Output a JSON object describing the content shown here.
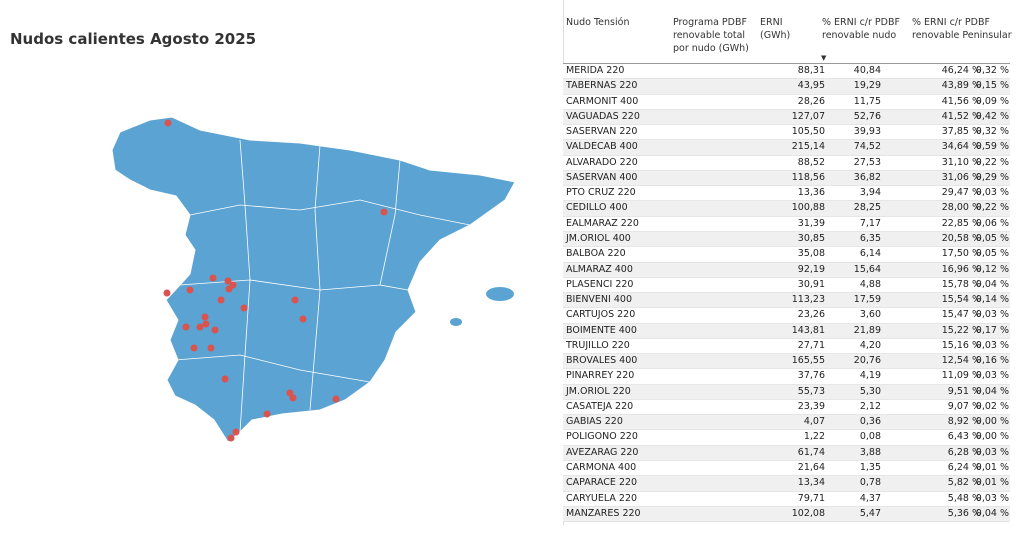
{
  "title": "Nudos calientes Agosto 2025",
  "table": {
    "headers": [
      "Nudo Tensión",
      "Programa PDBF renovable total por nudo (GWh)",
      "ERNI (GWh)",
      "% ERNI c/r PDBF renovable nudo",
      "% ERNI c/r PDBF renovable Peninsular"
    ],
    "rows": [
      [
        "MERIDA 220",
        "88,31",
        "40,84",
        "46,24 %",
        "0,32 %"
      ],
      [
        "TABERNAS 220",
        "43,95",
        "19,29",
        "43,89 %",
        "0,15 %"
      ],
      [
        "CARMONIT 400",
        "28,26",
        "11,75",
        "41,56 %",
        "0,09 %"
      ],
      [
        "VAGUADAS 220",
        "127,07",
        "52,76",
        "41,52 %",
        "0,42 %"
      ],
      [
        "SASERVAN 220",
        "105,50",
        "39,93",
        "37,85 %",
        "0,32 %"
      ],
      [
        "VALDECAB 400",
        "215,14",
        "74,52",
        "34,64 %",
        "0,59 %"
      ],
      [
        "ALVARADO 220",
        "88,52",
        "27,53",
        "31,10 %",
        "0,22 %"
      ],
      [
        "SASERVAN 400",
        "118,56",
        "36,82",
        "31,06 %",
        "0,29 %"
      ],
      [
        "PTO CRUZ 220",
        "13,36",
        "3,94",
        "29,47 %",
        "0,03 %"
      ],
      [
        "CEDILLO 400",
        "100,88",
        "28,25",
        "28,00 %",
        "0,22 %"
      ],
      [
        "EALMARAZ 220",
        "31,39",
        "7,17",
        "22,85 %",
        "0,06 %"
      ],
      [
        "JM.ORIOL 400",
        "30,85",
        "6,35",
        "20,58 %",
        "0,05 %"
      ],
      [
        "BALBOA 220",
        "35,08",
        "6,14",
        "17,50 %",
        "0,05 %"
      ],
      [
        "ALMARAZ 400",
        "92,19",
        "15,64",
        "16,96 %",
        "0,12 %"
      ],
      [
        "PLASENCI 220",
        "30,91",
        "4,88",
        "15,78 %",
        "0,04 %"
      ],
      [
        "BIENVENI 400",
        "113,23",
        "17,59",
        "15,54 %",
        "0,14 %"
      ],
      [
        "CARTUJOS 220",
        "23,26",
        "3,60",
        "15,47 %",
        "0,03 %"
      ],
      [
        "BOIMENTE 400",
        "143,81",
        "21,89",
        "15,22 %",
        "0,17 %"
      ],
      [
        "TRUJILLO 220",
        "27,71",
        "4,20",
        "15,16 %",
        "0,03 %"
      ],
      [
        "BROVALES 400",
        "165,55",
        "20,76",
        "12,54 %",
        "0,16 %"
      ],
      [
        "PINARREY 220",
        "37,76",
        "4,19",
        "11,09 %",
        "0,03 %"
      ],
      [
        "JM.ORIOL 220",
        "55,73",
        "5,30",
        "9,51 %",
        "0,04 %"
      ],
      [
        "CASATEJA 220",
        "23,39",
        "2,12",
        "9,07 %",
        "0,02 %"
      ],
      [
        "GABIAS 220",
        "4,07",
        "0,36",
        "8,92 %",
        "0,00 %"
      ],
      [
        "POLIGONO 220",
        "1,22",
        "0,08",
        "6,43 %",
        "0,00 %"
      ],
      [
        "AVEZARAG 220",
        "61,74",
        "3,88",
        "6,28 %",
        "0,03 %"
      ],
      [
        "CARMONA 400",
        "21,64",
        "1,35",
        "6,24 %",
        "0,01 %"
      ],
      [
        "CAPARACE 220",
        "13,34",
        "0,78",
        "5,82 %",
        "0,01 %"
      ],
      [
        "CARYUELA 220",
        "79,71",
        "4,37",
        "5,48 %",
        "0,03 %"
      ],
      [
        "MANZARES 220",
        "102,08",
        "5,47",
        "5,36 %",
        "0,04 %"
      ]
    ]
  }
}
